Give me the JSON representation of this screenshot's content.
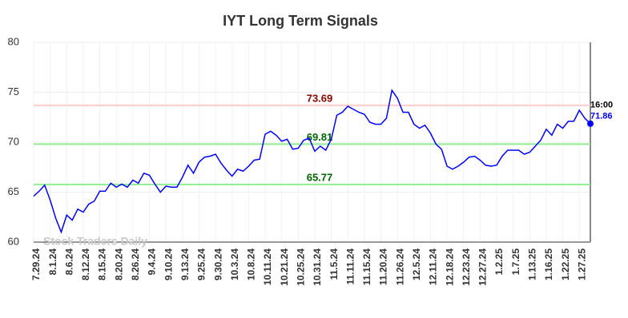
{
  "chart_data": {
    "type": "line",
    "title": "IYT Long Term Signals",
    "categories": [
      "7.29.24",
      null,
      null,
      "8.1.24",
      null,
      null,
      "8.6.24",
      null,
      null,
      "8.12.24",
      null,
      null,
      "8.15.24",
      null,
      null,
      "8.20.24",
      null,
      null,
      "8.26.24",
      null,
      null,
      "9.4.24",
      null,
      null,
      "9.10.24",
      null,
      null,
      "9.13.24",
      null,
      null,
      "9.25.24",
      null,
      null,
      "9.30.24",
      null,
      null,
      "10.3.24",
      null,
      null,
      "10.8.24",
      null,
      null,
      "10.11.24",
      null,
      null,
      "10.21.24",
      null,
      null,
      "10.25.24",
      null,
      null,
      "10.31.24",
      null,
      null,
      "11.5.24",
      null,
      null,
      "11.11.24",
      null,
      null,
      "11.15.24",
      null,
      null,
      "11.20.24",
      null,
      null,
      "11.26.24",
      null,
      null,
      "12.5.24",
      null,
      null,
      "12.11.24",
      null,
      null,
      "12.18.24",
      null,
      null,
      "12.23.24",
      null,
      null,
      "12.27.24",
      null,
      null,
      "1.2.25",
      null,
      null,
      "1.7.25",
      null,
      null,
      "1.13.25",
      null,
      null,
      "1.16.25",
      null,
      null,
      "1.22.25",
      null,
      null,
      "1.27.25",
      null,
      null
    ],
    "series": [
      {
        "color": "#0000ff",
        "values": [
          64.6,
          65.1,
          65.7,
          64.2,
          62.4,
          61.0,
          62.7,
          62.2,
          63.3,
          63.0,
          63.8,
          64.1,
          65.1,
          65.1,
          65.9,
          65.5,
          65.8,
          65.5,
          66.2,
          65.9,
          66.9,
          66.7,
          65.8,
          65.0,
          65.6,
          65.5,
          65.5,
          66.5,
          67.7,
          66.9,
          68.0,
          68.5,
          68.6,
          68.8,
          67.9,
          67.2,
          66.6,
          67.3,
          67.1,
          67.6,
          68.2,
          68.3,
          70.8,
          71.1,
          70.7,
          70.1,
          70.3,
          69.3,
          69.4,
          70.2,
          70.4,
          69.1,
          69.6,
          69.2,
          70.3,
          72.7,
          73.0,
          73.6,
          73.3,
          73.0,
          72.8,
          72.0,
          71.8,
          71.8,
          72.4,
          75.2,
          74.4,
          73.0,
          73.0,
          71.8,
          71.4,
          71.7,
          70.9,
          69.8,
          69.3,
          67.6,
          67.3,
          67.6,
          68.0,
          68.5,
          68.6,
          68.2,
          67.7,
          67.6,
          67.7,
          68.6,
          69.2,
          69.2,
          69.2,
          68.8,
          69.0,
          69.6,
          70.2,
          71.3,
          70.7,
          71.8,
          71.4,
          72.1,
          72.1,
          73.2,
          72.4,
          71.86
        ]
      }
    ],
    "reference_lines": [
      {
        "value": 73.69,
        "color": "#ffcccc",
        "label_color": "#8b0000"
      },
      {
        "value": 69.81,
        "color": "#90ee90",
        "label_color": "#006400"
      },
      {
        "value": 65.77,
        "color": "#90ee90",
        "label_color": "#006400"
      }
    ],
    "end_label": "16:00",
    "watermark": "Stock Traders Daily",
    "ylim": [
      60,
      80
    ],
    "yticks": [
      60,
      65,
      70,
      75,
      80
    ],
    "grid": true
  }
}
